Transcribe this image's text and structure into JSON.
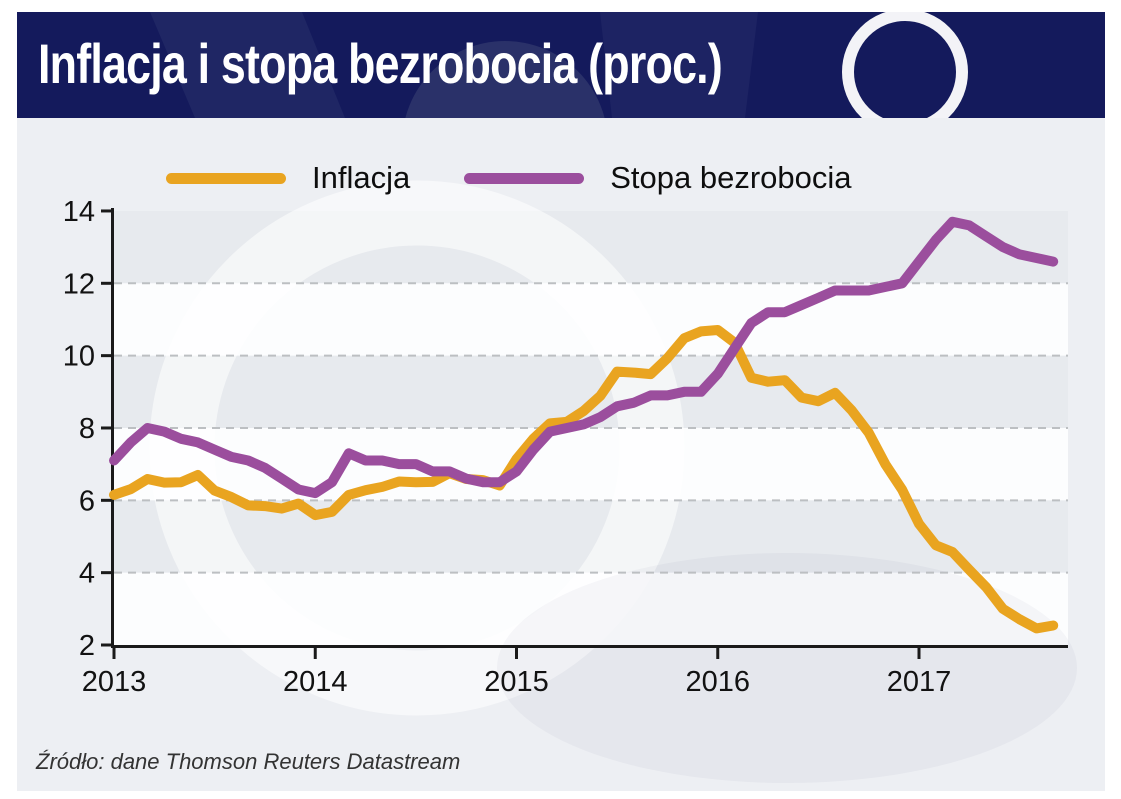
{
  "header": {
    "title": "Inflacja i stopa bezrobocia (proc.)"
  },
  "source": {
    "text": "Źródło: dane Thomson Reuters Datastream"
  },
  "colors": {
    "title_bar": "#141A5C",
    "title_text": "#FFFFFF",
    "chart_bg": "#EDEFF3",
    "band_white": "#FCFDFE",
    "band_gray": "#E7EAEE",
    "gridline": "#BCBFC2",
    "axis": "#1A1A1A",
    "inflation_line": "#E9A420",
    "unemployment_line": "#9B4E9D"
  },
  "chart_data": {
    "type": "line",
    "title": "Inflacja i stopa bezrobocia (proc.)",
    "unit": "proc.",
    "x_frequency": "monthly",
    "x_start": "2013-01",
    "x_end": "2017-09",
    "x_tick_labels": [
      "2013",
      "2014",
      "2015",
      "2016",
      "2017"
    ],
    "y_ticks": [
      2,
      4,
      6,
      8,
      10,
      12,
      14
    ],
    "ylim": [
      2,
      14
    ],
    "grid_values": [
      4,
      6,
      8,
      10,
      12
    ],
    "grid_style": "dashed-horizontal",
    "shaded_bands": [
      [
        4,
        6
      ],
      [
        8,
        10
      ],
      [
        12,
        14
      ]
    ],
    "legend_position": "top",
    "months": [
      "2013-01",
      "2013-02",
      "2013-03",
      "2013-04",
      "2013-05",
      "2013-06",
      "2013-07",
      "2013-08",
      "2013-09",
      "2013-10",
      "2013-11",
      "2013-12",
      "2014-01",
      "2014-02",
      "2014-03",
      "2014-04",
      "2014-05",
      "2014-06",
      "2014-07",
      "2014-08",
      "2014-09",
      "2014-10",
      "2014-11",
      "2014-12",
      "2015-01",
      "2015-02",
      "2015-03",
      "2015-04",
      "2015-05",
      "2015-06",
      "2015-07",
      "2015-08",
      "2015-09",
      "2015-10",
      "2015-11",
      "2015-12",
      "2016-01",
      "2016-02",
      "2016-03",
      "2016-04",
      "2016-05",
      "2016-06",
      "2016-07",
      "2016-08",
      "2016-09",
      "2016-10",
      "2016-11",
      "2016-12",
      "2017-01",
      "2017-02",
      "2017-03",
      "2017-04",
      "2017-05",
      "2017-06",
      "2017-07",
      "2017-08",
      "2017-09"
    ],
    "series": [
      {
        "name": "Inflacja",
        "color": "#E9A420",
        "values": [
          6.15,
          6.31,
          6.59,
          6.49,
          6.5,
          6.7,
          6.27,
          6.09,
          5.86,
          5.84,
          5.77,
          5.91,
          5.59,
          5.68,
          6.15,
          6.28,
          6.37,
          6.52,
          6.5,
          6.51,
          6.75,
          6.59,
          6.56,
          6.41,
          7.14,
          7.7,
          8.13,
          8.17,
          8.47,
          8.89,
          9.56,
          9.53,
          9.49,
          9.93,
          10.48,
          10.67,
          10.71,
          10.36,
          9.39,
          9.28,
          9.32,
          8.84,
          8.74,
          8.97,
          8.48,
          7.87,
          6.99,
          6.29,
          5.35,
          4.76,
          4.57,
          4.08,
          3.6,
          3.0,
          2.71,
          2.46,
          2.54
        ]
      },
      {
        "name": "Stopa bezrobocia",
        "color": "#9B4E9D",
        "values": [
          7.1,
          7.6,
          8.0,
          7.9,
          7.7,
          7.6,
          7.4,
          7.2,
          7.1,
          6.9,
          6.6,
          6.3,
          6.2,
          6.5,
          7.3,
          7.1,
          7.1,
          7.0,
          7.0,
          6.8,
          6.8,
          6.6,
          6.5,
          6.5,
          6.8,
          7.4,
          7.9,
          8.0,
          8.1,
          8.3,
          8.6,
          8.7,
          8.9,
          8.9,
          9.0,
          9.0,
          9.5,
          10.2,
          10.9,
          11.2,
          11.2,
          11.4,
          11.6,
          11.8,
          11.8,
          11.8,
          11.9,
          12.0,
          12.6,
          13.2,
          13.7,
          13.6,
          13.3,
          13.0,
          12.8,
          12.7,
          12.6
        ]
      }
    ]
  }
}
